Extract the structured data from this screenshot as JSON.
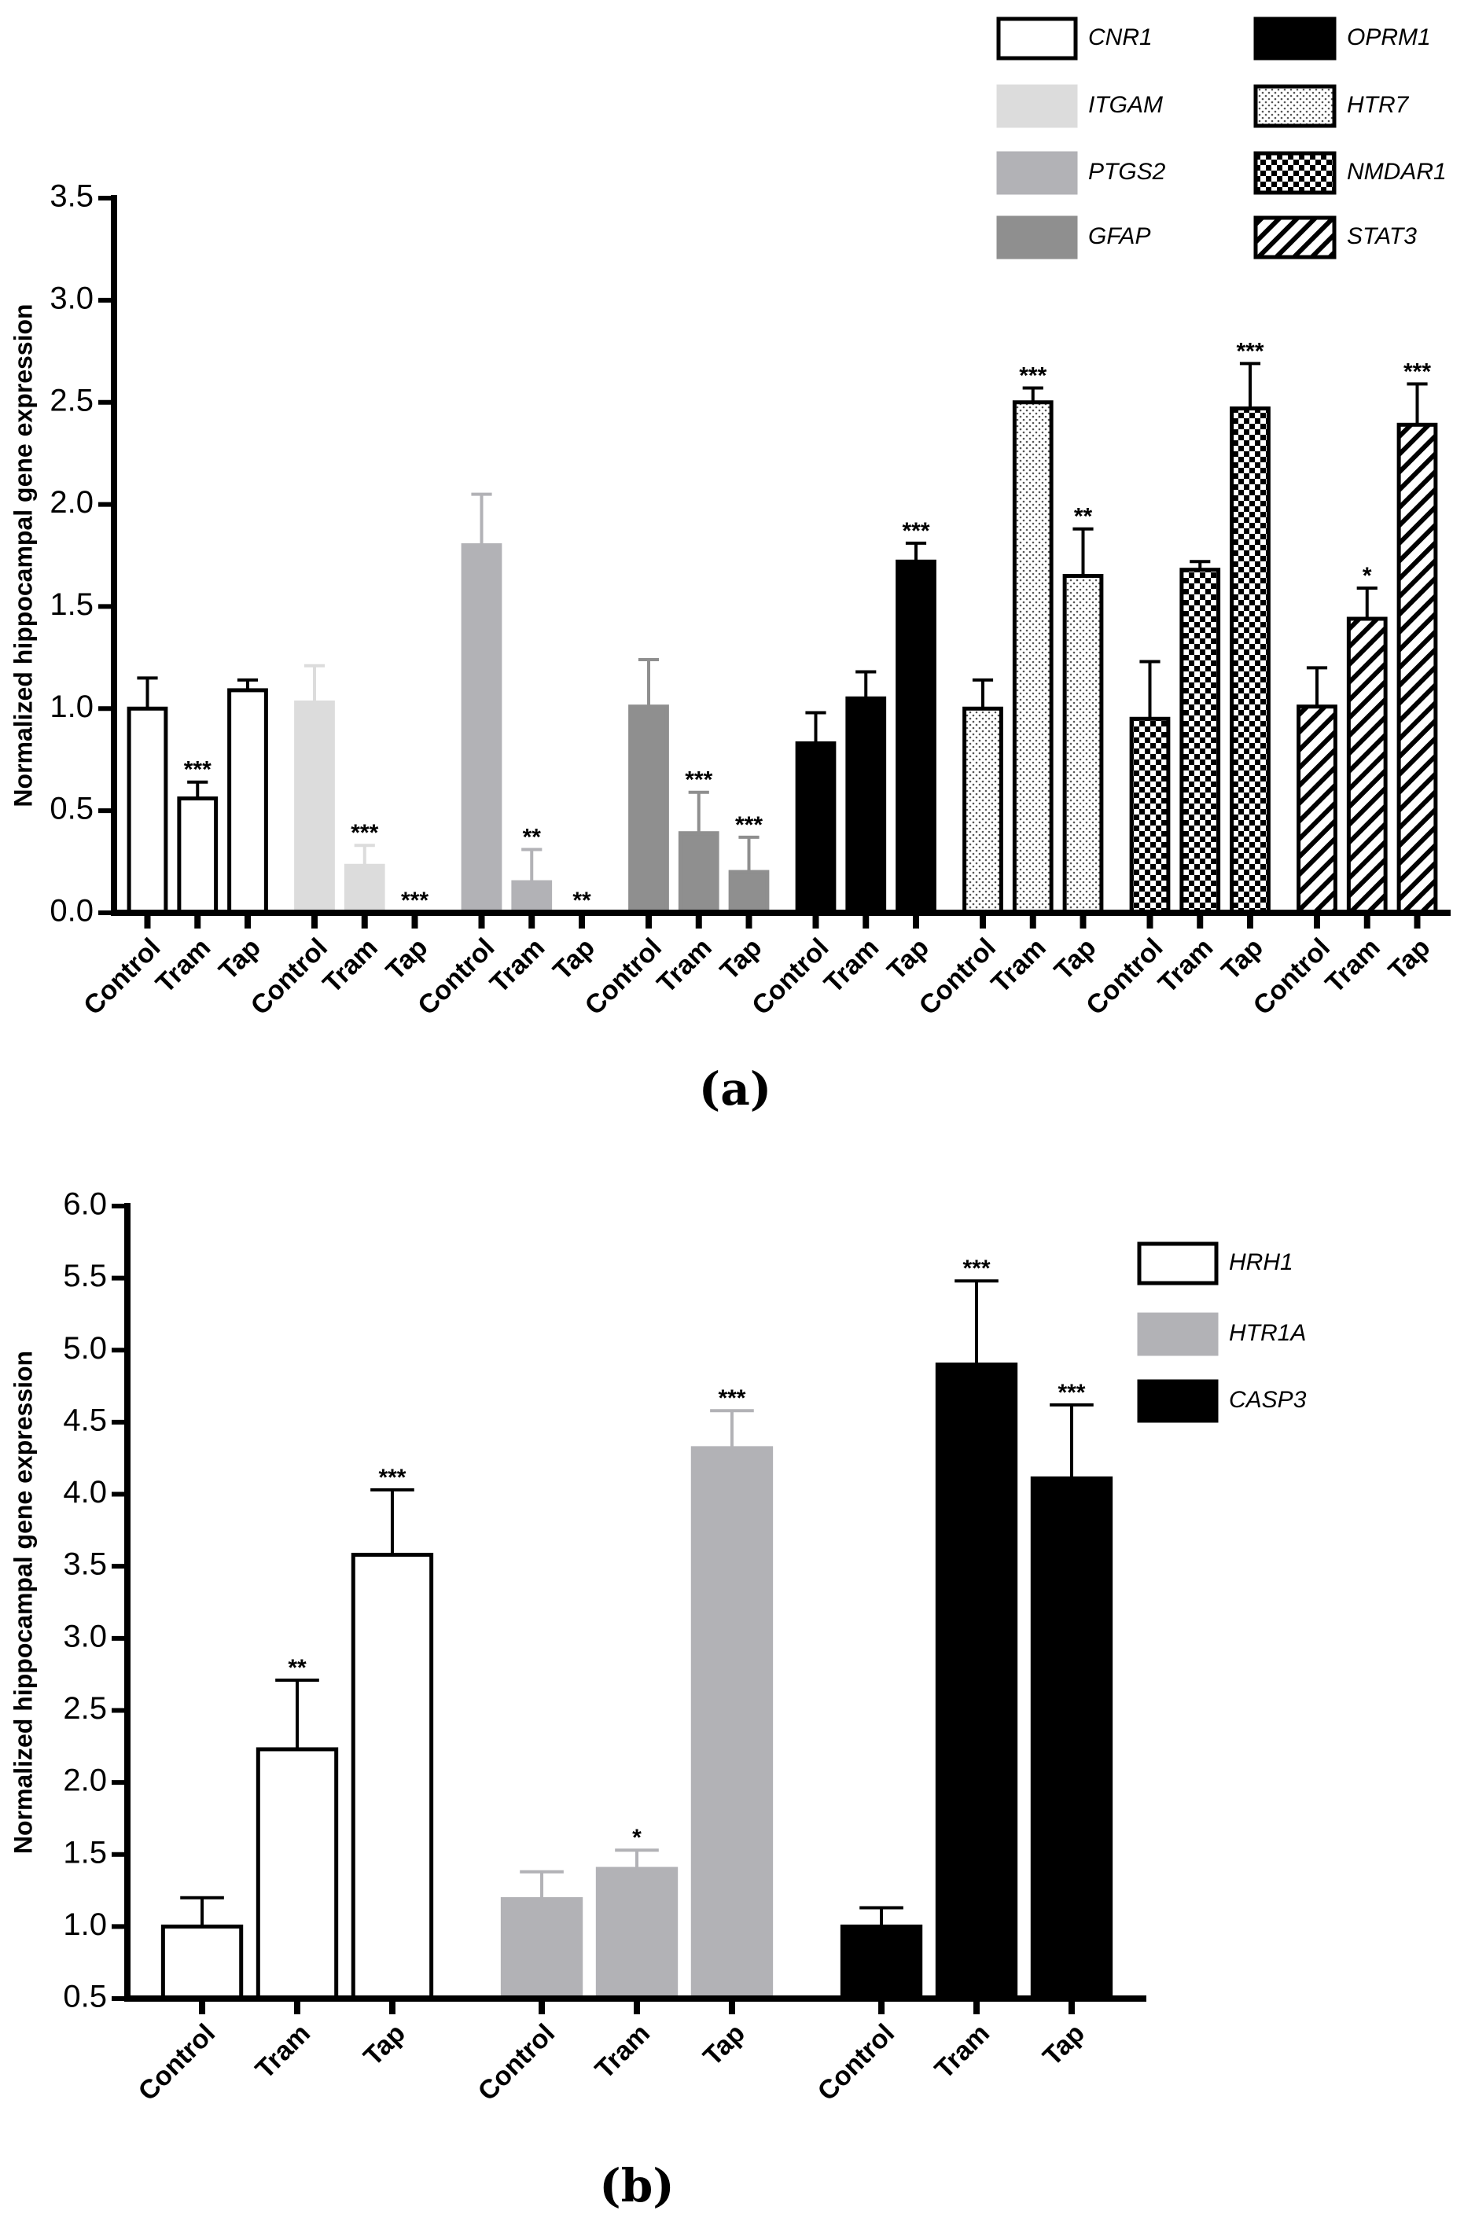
{
  "chart_data": [
    {
      "type": "bar",
      "panel_label": "(a)",
      "y_label": "Normalized hippocampal gene expression",
      "categories": [
        "Control",
        "Tram",
        "Tap"
      ],
      "ylim": [
        0,
        3.5
      ],
      "yticks": [
        {
          "value": 0,
          "label": "0.0"
        },
        {
          "value": 0.5,
          "label": "0.5"
        },
        {
          "value": 1,
          "label": "1.0"
        },
        {
          "value": 1.5,
          "label": "1.5"
        },
        {
          "value": 2,
          "label": "2.0"
        },
        {
          "value": 2.5,
          "label": "2.5"
        },
        {
          "value": 3,
          "label": "3.0"
        },
        {
          "value": 3.5,
          "label": "3.5"
        }
      ],
      "series": [
        {
          "name": "CNR1",
          "color": "#ffffff",
          "values": [
            1.0,
            0.56,
            1.09
          ],
          "errors": [
            0.15,
            0.08,
            0.05
          ],
          "significance": [
            null,
            "***",
            null
          ]
        },
        {
          "name": "ITGAM",
          "color": "#dcdcdc",
          "values": [
            1.03,
            0.23,
            0.0
          ],
          "errors": [
            0.18,
            0.1,
            0.0
          ],
          "significance": [
            null,
            "***",
            "***"
          ]
        },
        {
          "name": "PTGS2",
          "color": "#b2b2b6",
          "values": [
            1.8,
            0.15,
            0.0
          ],
          "errors": [
            0.25,
            0.16,
            0.0
          ],
          "significance": [
            null,
            "**",
            "**"
          ]
        },
        {
          "name": "GFAP",
          "color": "#8f8f8f",
          "values": [
            1.01,
            0.39,
            0.2
          ],
          "errors": [
            0.23,
            0.2,
            0.17
          ],
          "significance": [
            null,
            "***",
            "***"
          ]
        },
        {
          "name": "OPRM1",
          "color": "#000000",
          "values": [
            0.83,
            1.05,
            1.72
          ],
          "errors": [
            0.15,
            0.13,
            0.09
          ],
          "significance": [
            null,
            null,
            "***"
          ]
        },
        {
          "name": "HTR7",
          "color": "#ffffff",
          "pattern": "dots",
          "values": [
            1.0,
            2.5,
            1.65
          ],
          "errors": [
            0.14,
            0.07,
            0.23
          ],
          "significance": [
            null,
            "***",
            "**"
          ]
        },
        {
          "name": "NMDAR1",
          "color": "#ffffff",
          "pattern": "checker",
          "values": [
            0.95,
            1.68,
            2.47
          ],
          "errors": [
            0.28,
            0.04,
            0.22
          ],
          "significance": [
            null,
            null,
            "***"
          ]
        },
        {
          "name": "STAT3",
          "color": "#ffffff",
          "pattern": "hatch",
          "values": [
            1.01,
            1.44,
            2.39
          ],
          "errors": [
            0.19,
            0.15,
            0.2
          ],
          "significance": [
            null,
            "*",
            "***"
          ]
        }
      ]
    },
    {
      "type": "bar",
      "panel_label": "(b)",
      "y_label": "Normalized hippocampal gene expression",
      "categories": [
        "Control",
        "Tram",
        "Tap"
      ],
      "ylim": [
        0.5,
        6.0
      ],
      "yticks": [
        {
          "value": 0.5,
          "label": "0.5"
        },
        {
          "value": 1,
          "label": "1.0"
        },
        {
          "value": 1.5,
          "label": "1.5"
        },
        {
          "value": 2,
          "label": "2.0"
        },
        {
          "value": 2.5,
          "label": "2.5"
        },
        {
          "value": 3,
          "label": "3.0"
        },
        {
          "value": 3.5,
          "label": "3.5"
        },
        {
          "value": 4,
          "label": "4.0"
        },
        {
          "value": 4.5,
          "label": "4.5"
        },
        {
          "value": 5,
          "label": "5.0"
        },
        {
          "value": 5.5,
          "label": "5.5"
        },
        {
          "value": 6,
          "label": "6.0"
        }
      ],
      "series": [
        {
          "name": "HRH1",
          "color": "#ffffff",
          "values": [
            1.0,
            2.23,
            3.58
          ],
          "errors": [
            0.2,
            0.48,
            0.45
          ],
          "significance": [
            null,
            "**",
            "***"
          ]
        },
        {
          "name": "HTR1A",
          "color": "#b2b2b6",
          "values": [
            1.19,
            1.4,
            4.32
          ],
          "errors": [
            0.19,
            0.13,
            0.26
          ],
          "significance": [
            null,
            "*",
            "***"
          ]
        },
        {
          "name": "CASP3",
          "color": "#000000",
          "values": [
            1.0,
            4.9,
            4.11
          ],
          "errors": [
            0.13,
            0.58,
            0.51
          ],
          "significance": [
            null,
            "***",
            "***"
          ]
        }
      ]
    }
  ]
}
